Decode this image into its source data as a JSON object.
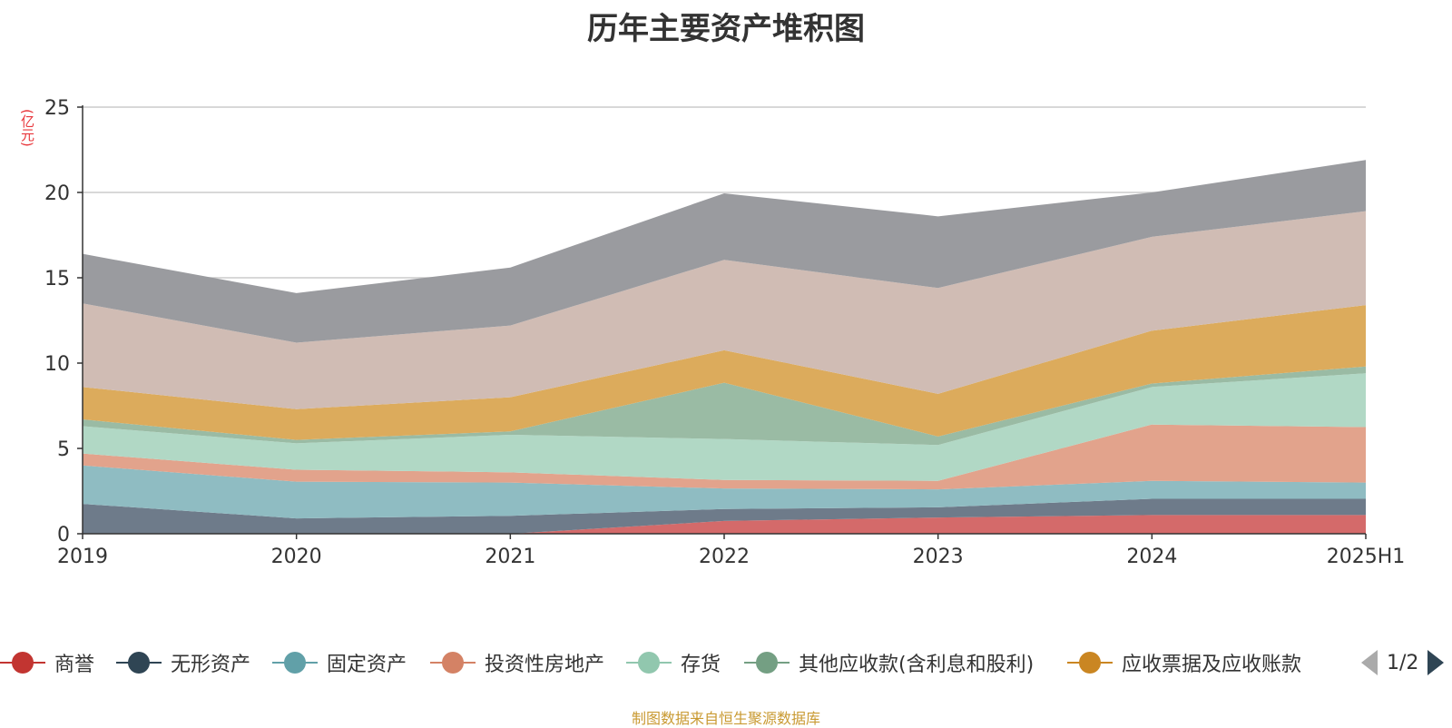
{
  "chart_data": {
    "type": "area",
    "stacked": true,
    "title": "历年主要资产堆积图",
    "ylabel": "(亿元)",
    "ylim": [
      0,
      25
    ],
    "yticks": [
      "0",
      "5",
      "10",
      "15",
      "20",
      "25"
    ],
    "grid": true,
    "legend_position": "bottom",
    "categories": [
      "2019",
      "2020",
      "2021",
      "2022",
      "2023",
      "2024",
      "2025H1"
    ],
    "series": [
      {
        "name": "商誉",
        "color": "#c23531",
        "fill": "#d46a6a",
        "values": [
          0,
          0,
          0,
          0.75,
          0.95,
          1.1,
          1.1
        ]
      },
      {
        "name": "无形资产",
        "color": "#2f4554",
        "fill": "#6e7b8a",
        "values": [
          1.75,
          0.9,
          1.05,
          0.7,
          0.6,
          0.95,
          0.95
        ]
      },
      {
        "name": "固定资产",
        "color": "#61a0a8",
        "fill": "#8fbcc2",
        "values": [
          2.25,
          2.15,
          1.95,
          1.2,
          1.05,
          1.05,
          0.95
        ]
      },
      {
        "name": "投资性房地产",
        "color": "#d48265",
        "fill": "#e2a38c",
        "values": [
          0.7,
          0.7,
          0.6,
          0.5,
          0.5,
          3.3,
          3.25
        ]
      },
      {
        "name": "存货",
        "color": "#91c7ae",
        "fill": "#b1d8c5",
        "values": [
          1.6,
          1.55,
          2.2,
          2.4,
          2.1,
          2.2,
          3.15
        ]
      },
      {
        "name": "其他应收款(含利息和股利)",
        "color": "#749f83",
        "fill": "#9abba4",
        "values": [
          0.4,
          0.2,
          0.2,
          3.3,
          0.5,
          0.2,
          0.4
        ]
      },
      {
        "name": "应收票据及应收账款",
        "color": "#ca8622",
        "fill": "#dcab5c",
        "values": [
          1.9,
          1.8,
          2.0,
          1.9,
          2.5,
          3.1,
          3.6
        ]
      },
      {
        "name": "",
        "color": "#c0a79e",
        "fill": "#d0bcb4",
        "values": [
          4.9,
          3.9,
          4.2,
          5.3,
          6.2,
          5.5,
          5.5
        ]
      },
      {
        "name": "",
        "color": "#7c7e85",
        "fill": "#9a9b9f",
        "values": [
          2.9,
          2.9,
          3.4,
          3.9,
          4.2,
          2.6,
          3.0
        ]
      }
    ]
  },
  "legend": {
    "page": "1/2"
  },
  "source_note": "制图数据来自恒生聚源数据库"
}
